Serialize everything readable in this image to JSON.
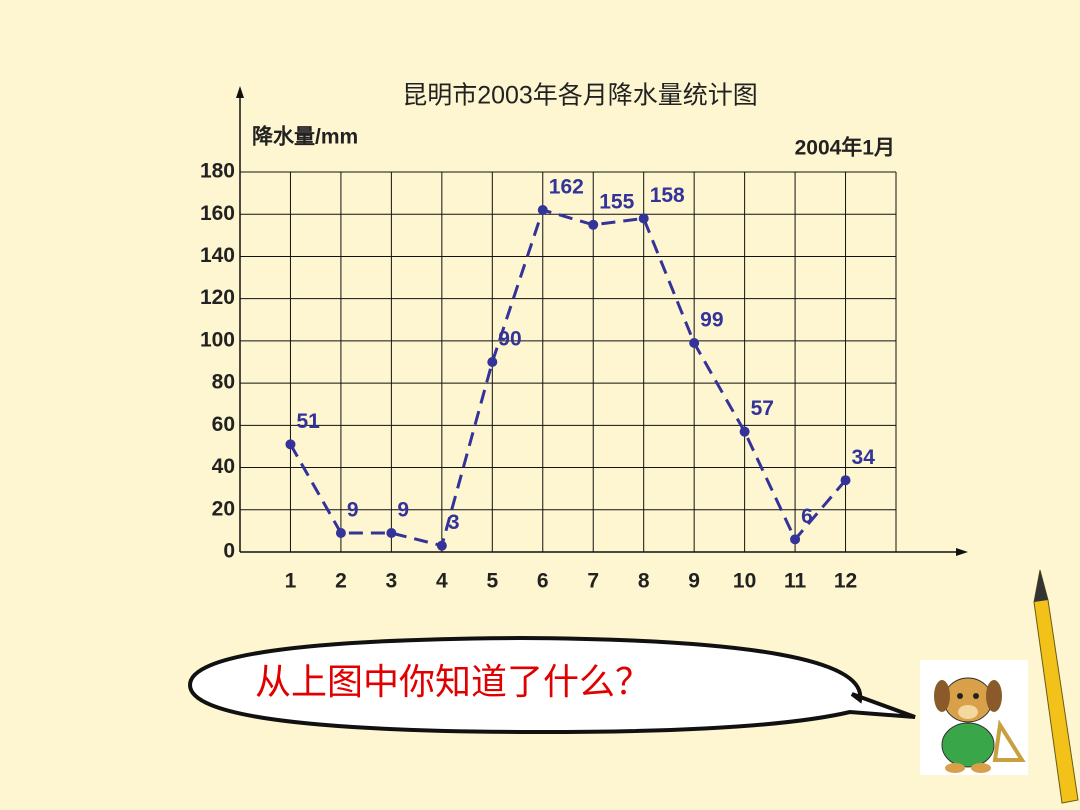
{
  "chart_data": {
    "type": "line",
    "title": "昆明市2003年各月降水量统计图",
    "y_label": "降水量/mm",
    "annotation": "2004年1月",
    "categories": [
      "1",
      "2",
      "3",
      "4",
      "5",
      "6",
      "7",
      "8",
      "9",
      "10",
      "11",
      "12"
    ],
    "series": [
      {
        "name": "降水量",
        "color": "#333399",
        "values": [
          51,
          9,
          9,
          3,
          90,
          162,
          155,
          158,
          99,
          57,
          6,
          34
        ]
      }
    ],
    "ylim": [
      0,
      180
    ],
    "yticks": [
      0,
      20,
      40,
      60,
      80,
      100,
      120,
      140,
      160,
      180
    ],
    "grid": true,
    "question": "从上图中你知道了什么？"
  }
}
